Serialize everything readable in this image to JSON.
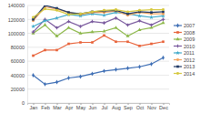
{
  "chart_data": {
    "type": "line",
    "categories": [
      "Jan",
      "Feb",
      "Mar",
      "Apr",
      "May",
      "Jun",
      "Jul",
      "Aug",
      "Sep",
      "Oct",
      "Nov",
      "Dec"
    ],
    "series": [
      {
        "name": "2007",
        "color": "#3f6fb5",
        "marker": "diamond",
        "values": [
          40000,
          27000,
          30000,
          36000,
          38000,
          42000,
          46000,
          48000,
          50000,
          52000,
          56000,
          65000
        ]
      },
      {
        "name": "2008",
        "color": "#e8633a",
        "marker": "square",
        "values": [
          68000,
          76000,
          76000,
          85000,
          87000,
          87000,
          97000,
          88000,
          88000,
          82000,
          85000,
          88000
        ]
      },
      {
        "name": "2009",
        "color": "#8db84a",
        "marker": "triangle",
        "values": [
          100000,
          112000,
          96000,
          108000,
          100000,
          102000,
          103000,
          108000,
          96000,
          105000,
          108000,
          115000
        ]
      },
      {
        "name": "2010",
        "color": "#7a5a9e",
        "marker": "cross",
        "values": [
          102000,
          120000,
          108000,
          117000,
          110000,
          117000,
          115000,
          122000,
          112000,
          118000,
          112000,
          120000
        ]
      },
      {
        "name": "2011",
        "color": "#3fa9c9",
        "marker": "star",
        "values": [
          110000,
          118000,
          122000,
          127000,
          125000,
          128000,
          126000,
          130000,
          128000,
          125000,
          123000,
          125000
        ]
      },
      {
        "name": "2012",
        "color": "#f3a35b",
        "marker": "circle",
        "values": [
          118000,
          138000,
          135000,
          130000,
          127000,
          130000,
          130000,
          132000,
          126000,
          130000,
          128000,
          128000
        ]
      },
      {
        "name": "2013",
        "color": "#1f3864",
        "marker": "square",
        "values": [
          120000,
          140000,
          136000,
          130000,
          128000,
          131000,
          132000,
          133000,
          128000,
          131000,
          130000,
          131000
        ]
      },
      {
        "name": "2014",
        "color": "#d6c83e",
        "marker": "circle",
        "values": [
          123000,
          135000,
          133000,
          127000,
          128000,
          131000,
          133000,
          134000,
          131000,
          133000,
          134000,
          134000
        ]
      }
    ],
    "ylim": [
      0,
      140000
    ],
    "yticks": [
      0,
      20000,
      40000,
      60000,
      80000,
      100000,
      120000,
      140000
    ],
    "grid": true,
    "legend": "right"
  }
}
